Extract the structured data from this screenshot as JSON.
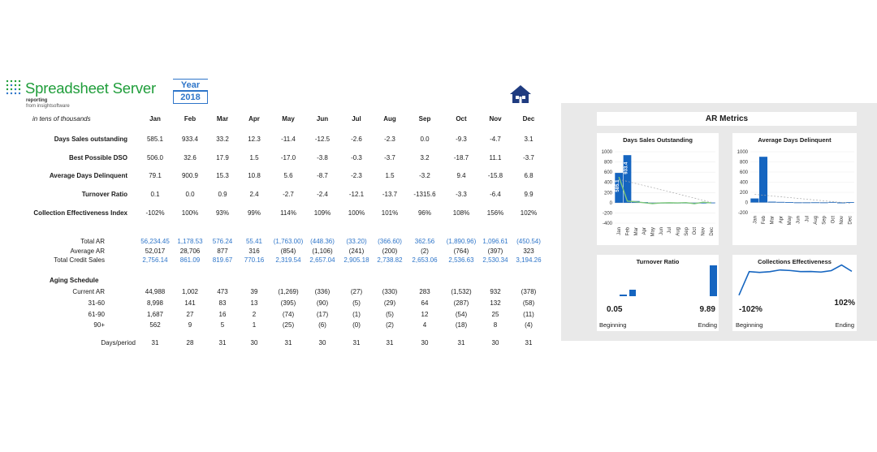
{
  "brand": {
    "name": "Spreadsheet Server",
    "tagline": "reporting",
    "sub": "from insightsoftware"
  },
  "year_selector": {
    "label": "Year",
    "value": "2018"
  },
  "table": {
    "unit_note": "in tens of thousands",
    "months": [
      "Jan",
      "Feb",
      "Mar",
      "Apr",
      "May",
      "Jun",
      "Jul",
      "Aug",
      "Sep",
      "Oct",
      "Nov",
      "Dec"
    ],
    "kpi_rows": [
      {
        "label": "Days Sales outstanding",
        "values": [
          "585.1",
          "933.4",
          "33.2",
          "12.3",
          "-11.4",
          "-12.5",
          "-2.6",
          "-2.3",
          "0.0",
          "-9.3",
          "-4.7",
          "3.1"
        ]
      },
      {
        "label": "Best Possible DSO",
        "values": [
          "506.0",
          "32.6",
          "17.9",
          "1.5",
          "-17.0",
          "-3.8",
          "-0.3",
          "-3.7",
          "3.2",
          "-18.7",
          "11.1",
          "-3.7"
        ]
      },
      {
        "label": "Average Days Delinquent",
        "values": [
          "79.1",
          "900.9",
          "15.3",
          "10.8",
          "5.6",
          "-8.7",
          "-2.3",
          "1.5",
          "-3.2",
          "9.4",
          "-15.8",
          "6.8"
        ]
      },
      {
        "label": "Turnover Ratio",
        "values": [
          "0.1",
          "0.0",
          "0.9",
          "2.4",
          "-2.7",
          "-2.4",
          "-12.1",
          "-13.7",
          "-1315.6",
          "-3.3",
          "-6.4",
          "9.9"
        ]
      },
      {
        "label": "Collection Effectiveness Index",
        "values": [
          "-102%",
          "100%",
          "93%",
          "99%",
          "114%",
          "109%",
          "100%",
          "101%",
          "96%",
          "108%",
          "156%",
          "102%"
        ]
      }
    ],
    "ar_rows": [
      {
        "label": "Total AR",
        "blue": true,
        "values": [
          "56,234.45",
          "1,178.53",
          "576.24",
          "55.41",
          "(1,763.00)",
          "(448.36)",
          "(33.20)",
          "(366.60)",
          "362.56",
          "(1,890.96)",
          "1,096.61",
          "(450.54)"
        ]
      },
      {
        "label": "Average AR",
        "blue": false,
        "values": [
          "52,017",
          "28,706",
          "877",
          "316",
          "(854)",
          "(1,106)",
          "(241)",
          "(200)",
          "(2)",
          "(764)",
          "(397)",
          "323"
        ]
      },
      {
        "label": "Total Credit Sales",
        "blue": true,
        "values": [
          "2,756.14",
          "861.09",
          "819.67",
          "770.16",
          "2,319.54",
          "2,657.04",
          "2,905.18",
          "2,738.82",
          "2,653.06",
          "2,536.63",
          "2,530.34",
          "3,194.26"
        ]
      }
    ],
    "aging_title": "Aging Schedule",
    "aging_rows": [
      {
        "label": "Current AR",
        "values": [
          "44,988",
          "1,002",
          "473",
          "39",
          "(1,269)",
          "(336)",
          "(27)",
          "(330)",
          "283",
          "(1,532)",
          "932",
          "(378)"
        ]
      },
      {
        "label": "31-60",
        "values": [
          "8,998",
          "141",
          "83",
          "13",
          "(395)",
          "(90)",
          "(5)",
          "(29)",
          "64",
          "(287)",
          "132",
          "(58)"
        ]
      },
      {
        "label": "61-90",
        "values": [
          "1,687",
          "27",
          "16",
          "2",
          "(74)",
          "(17)",
          "(1)",
          "(5)",
          "12",
          "(54)",
          "25",
          "(11)"
        ]
      },
      {
        "label": "90+",
        "values": [
          "562",
          "9",
          "5",
          "1",
          "(25)",
          "(6)",
          "(0)",
          "(2)",
          "4",
          "(18)",
          "8",
          "(4)"
        ]
      }
    ],
    "days_row": {
      "label": "Days/period",
      "values": [
        "31",
        "28",
        "31",
        "30",
        "31",
        "30",
        "31",
        "31",
        "30",
        "31",
        "30",
        "31"
      ]
    }
  },
  "metrics": {
    "title": "AR Metrics",
    "dso_title": "Days Sales Outstanding",
    "add_title": "Average Days Delinquent",
    "turnover_title": "Turnover Ratio",
    "ce_title": "Collections Effectiveness",
    "turnover_start": "0.05",
    "turnover_end": "9.89",
    "ce_start": "-102%",
    "ce_end": "102%",
    "beginning_label": "Beginning",
    "ending_label": "Ending"
  },
  "chart_data": [
    {
      "type": "bar",
      "title": "Days Sales Outstanding",
      "categories": [
        "Jan",
        "Feb",
        "Mar",
        "Apr",
        "May",
        "Jun",
        "Jul",
        "Aug",
        "Sep",
        "Oct",
        "Nov",
        "Dec"
      ],
      "series": [
        {
          "values": [
            585.1,
            933.4,
            33.2,
            12.3,
            -11.4,
            -12.5,
            -2.6,
            -2.3,
            0.0,
            -9.3,
            -4.7,
            3.1
          ]
        },
        {
          "type": "line",
          "values": [
            506.0,
            32.6,
            17.9,
            1.5,
            -17.0,
            -3.8,
            -0.3,
            -3.7,
            3.2,
            -18.7,
            11.1,
            -3.7
          ]
        }
      ],
      "data_labels": [
        "585.1",
        "933.4"
      ],
      "yticks": [
        1000,
        800,
        600,
        400,
        200,
        0,
        -200,
        -400
      ],
      "ylim": [
        -400,
        1000
      ]
    },
    {
      "type": "bar",
      "title": "Average Days Delinquent",
      "categories": [
        "Jan",
        "Feb",
        "Mar",
        "Apr",
        "May",
        "Jun",
        "Jul",
        "Aug",
        "Sep",
        "Oct",
        "Nov",
        "Dec"
      ],
      "values": [
        79.1,
        900.9,
        15.3,
        10.8,
        5.6,
        -8.7,
        -2.3,
        1.5,
        -3.2,
        9.4,
        -15.8,
        6.8
      ],
      "yticks": [
        1000,
        800,
        600,
        400,
        200,
        0,
        -200
      ],
      "ylim": [
        -200,
        1000
      ]
    },
    {
      "type": "bar",
      "title": "Turnover Ratio",
      "values": [
        0.1,
        0.0,
        0.9,
        2.4,
        -2.7,
        -2.4,
        -12.1,
        -13.7,
        -1315.6,
        -3.3,
        -6.4,
        9.9
      ]
    },
    {
      "type": "line",
      "title": "Collections Effectiveness",
      "values": [
        -102,
        100,
        93,
        99,
        114,
        109,
        100,
        101,
        96,
        108,
        156,
        102
      ]
    }
  ]
}
